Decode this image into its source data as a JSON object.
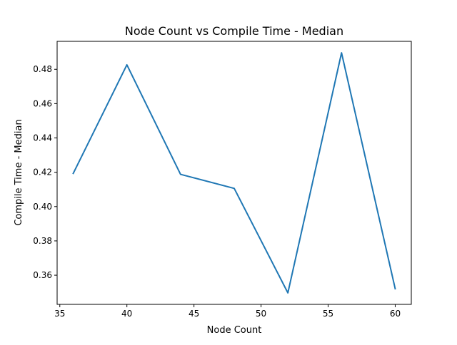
{
  "chart_data": {
    "type": "line",
    "title": "Node Count vs Compile Time - Median",
    "xlabel": "Node Count",
    "ylabel": "Compile Time - Median",
    "xlim": [
      34.8,
      61.2
    ],
    "ylim": [
      0.343,
      0.4963
    ],
    "xticks": [
      35,
      40,
      45,
      50,
      55,
      60
    ],
    "xtick_labels": [
      "35",
      "40",
      "45",
      "50",
      "55",
      "60"
    ],
    "yticks": [
      0.36,
      0.38,
      0.4,
      0.42,
      0.44,
      0.46,
      0.48
    ],
    "ytick_labels": [
      "0.36",
      "0.38",
      "0.40",
      "0.42",
      "0.44",
      "0.46",
      "0.48"
    ],
    "grid": false,
    "series": [
      {
        "color": "#1f77b4",
        "x": [
          36,
          40,
          44,
          48,
          52,
          56,
          60
        ],
        "y": [
          0.4193,
          0.4826,
          0.4188,
          0.4106,
          0.3497,
          0.4896,
          0.3521
        ]
      }
    ]
  }
}
